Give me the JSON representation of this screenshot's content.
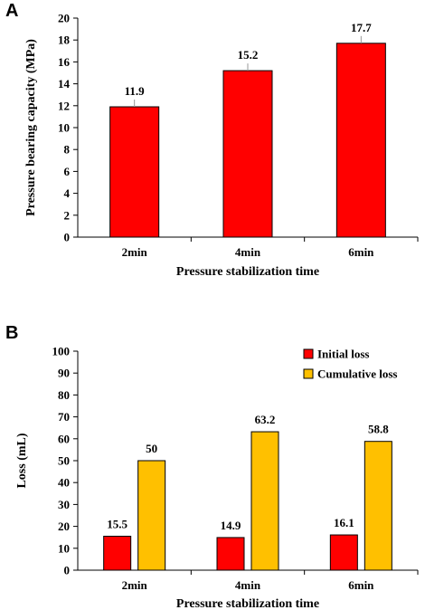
{
  "chart_data": [
    {
      "panel": "A",
      "type": "bar",
      "categories": [
        "2min",
        "4min",
        "6min"
      ],
      "series": [
        {
          "values": [
            11.9,
            15.2,
            17.7
          ],
          "labels": [
            "11.9",
            "15.2",
            "17.7"
          ],
          "color": "#FF0000"
        }
      ],
      "ylabel": "Pressure bearing capacity (MPa)",
      "xlabel": "Pressure stabilization time",
      "ylim": [
        0,
        20
      ],
      "yticks": [
        0,
        2,
        4,
        6,
        8,
        10,
        12,
        14,
        16,
        18,
        20
      ],
      "grid": false
    },
    {
      "panel": "B",
      "type": "bar",
      "categories": [
        "2min",
        "4min",
        "6min"
      ],
      "series": [
        {
          "name": "Initial loss",
          "values": [
            15.5,
            14.9,
            16.1
          ],
          "labels": [
            "15.5",
            "14.9",
            "16.1"
          ],
          "color": "#FF0000"
        },
        {
          "name": "Cumulative loss",
          "values": [
            50,
            63.2,
            58.8
          ],
          "labels": [
            "50",
            "63.2",
            "58.8"
          ],
          "color": "#FFC000"
        }
      ],
      "ylabel": "Loss (mL)",
      "xlabel": "Pressure stabilization time",
      "ylim": [
        0,
        100
      ],
      "yticks": [
        0,
        10,
        20,
        30,
        40,
        50,
        60,
        70,
        80,
        90,
        100
      ],
      "legend": "top-right",
      "grid": false
    }
  ]
}
